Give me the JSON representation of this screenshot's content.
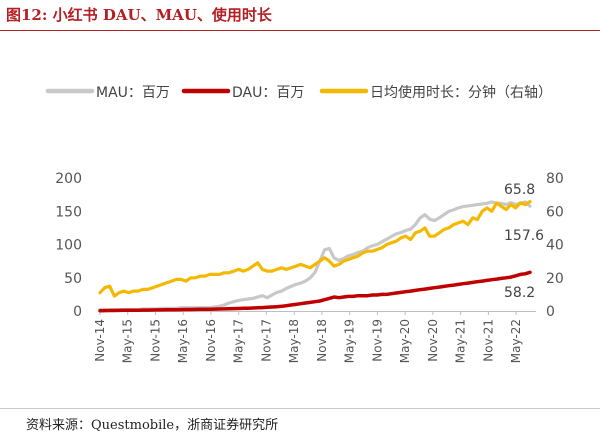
{
  "figure": {
    "title": "图12:   小红书 DAU、MAU、使用时长",
    "source": "资料来源：Questmobile，浙商证券研究所"
  },
  "chart_data": {
    "type": "line",
    "title": "",
    "xlabel": "",
    "ylabel": "",
    "x_ticks": [
      "Nov-14",
      "May-15",
      "Nov-15",
      "May-16",
      "Nov-16",
      "May-17",
      "Nov-17",
      "May-18",
      "Nov-18",
      "May-19",
      "Nov-19",
      "May-20",
      "Nov-20",
      "May-21",
      "Nov-21",
      "May-22"
    ],
    "ylim_left": [
      0,
      200
    ],
    "yticks_left": [
      0,
      50,
      100,
      150,
      200
    ],
    "ylim_right": [
      0,
      80
    ],
    "yticks_right": [
      0,
      20,
      40,
      60,
      80
    ],
    "legend_position": "top",
    "grid": false,
    "series": [
      {
        "name": "MAU：百万",
        "axis": "left",
        "color": "#c8c8c8",
        "x": [
          0,
          1,
          2,
          3,
          4,
          5,
          6,
          7,
          8,
          9,
          10,
          11,
          12,
          13,
          14,
          15,
          16,
          17,
          18,
          19,
          20,
          21,
          22,
          23,
          24,
          25,
          26,
          27,
          28,
          29,
          30,
          31,
          32,
          33,
          34,
          35,
          36,
          37,
          38,
          39,
          40,
          41,
          42,
          43,
          44,
          45,
          46,
          47,
          48,
          49,
          50,
          51,
          52,
          53,
          54,
          55,
          56,
          57,
          58,
          59,
          60,
          61,
          62,
          63,
          64,
          65,
          66,
          67,
          68,
          69,
          70,
          71,
          72,
          73,
          74,
          75,
          76,
          77,
          78,
          79,
          80,
          81,
          82,
          83,
          84,
          85,
          86,
          87,
          88,
          89,
          90
        ],
        "values": [
          2,
          2,
          2,
          2,
          2,
          2,
          2,
          2,
          2,
          3,
          3,
          3,
          3,
          4,
          4,
          4,
          4,
          5,
          5,
          5,
          5,
          5,
          5,
          5,
          6,
          7,
          9,
          12,
          14,
          16,
          17,
          18,
          19,
          21,
          23,
          20,
          24,
          28,
          30,
          34,
          37,
          40,
          42,
          45,
          50,
          58,
          75,
          92,
          94,
          80,
          76,
          79,
          83,
          85,
          88,
          90,
          95,
          98,
          100,
          104,
          108,
          112,
          116,
          118,
          121,
          123,
          130,
          140,
          145,
          138,
          136,
          140,
          145,
          150,
          152,
          155,
          157,
          158,
          159,
          160,
          161,
          162,
          164,
          162,
          162,
          160,
          163,
          160,
          162,
          164,
          157.6
        ]
      },
      {
        "name": "DAU：百万",
        "axis": "left",
        "color": "#c00000",
        "x": [
          0,
          1,
          2,
          3,
          4,
          5,
          6,
          7,
          8,
          9,
          10,
          11,
          12,
          13,
          14,
          15,
          16,
          17,
          18,
          19,
          20,
          21,
          22,
          23,
          24,
          25,
          26,
          27,
          28,
          29,
          30,
          31,
          32,
          33,
          34,
          35,
          36,
          37,
          38,
          39,
          40,
          41,
          42,
          43,
          44,
          45,
          46,
          47,
          48,
          49,
          50,
          51,
          52,
          53,
          54,
          55,
          56,
          57,
          58,
          59,
          60,
          61,
          62,
          63,
          64,
          65,
          66,
          67,
          68,
          69,
          70,
          71,
          72,
          73,
          74,
          75,
          76,
          77,
          78,
          79,
          80,
          81,
          82,
          83,
          84,
          85,
          86,
          87,
          88,
          89,
          90
        ],
        "values": [
          0.5,
          0.6,
          0.7,
          0.8,
          0.9,
          1,
          1,
          1.1,
          1.2,
          1.3,
          1.4,
          1.5,
          1.6,
          1.7,
          1.8,
          1.9,
          2,
          2.1,
          2.2,
          2.3,
          2.4,
          2.5,
          2.6,
          2.7,
          2.8,
          3,
          3.2,
          3.4,
          3.6,
          3.8,
          4,
          4.2,
          4.5,
          4.8,
          5.1,
          5.5,
          6,
          6.5,
          7,
          8,
          9,
          10,
          11,
          12,
          13,
          14,
          15,
          17,
          19,
          21,
          20,
          21,
          22,
          22,
          23,
          23,
          23,
          24,
          24,
          25,
          25,
          26,
          27,
          28,
          29,
          30,
          31,
          32,
          33,
          34,
          35,
          36,
          37,
          38,
          39,
          40,
          41,
          42,
          43,
          44,
          45,
          46,
          47,
          48,
          49,
          50,
          51,
          53,
          55,
          56,
          58.2
        ]
      },
      {
        "name": "日均使用时长：分钟（右轴）",
        "axis": "right",
        "color": "#f5b800",
        "x": [
          0,
          1,
          2,
          3,
          4,
          5,
          6,
          7,
          8,
          9,
          10,
          11,
          12,
          13,
          14,
          15,
          16,
          17,
          18,
          19,
          20,
          21,
          22,
          23,
          24,
          25,
          26,
          27,
          28,
          29,
          30,
          31,
          32,
          33,
          34,
          35,
          36,
          37,
          38,
          39,
          40,
          41,
          42,
          43,
          44,
          45,
          46,
          47,
          48,
          49,
          50,
          51,
          52,
          53,
          54,
          55,
          56,
          57,
          58,
          59,
          60,
          61,
          62,
          63,
          64,
          65,
          66,
          67,
          68,
          69,
          70,
          71,
          72,
          73,
          74,
          75,
          76,
          77,
          78,
          79,
          80,
          81,
          82,
          83,
          84,
          85,
          86,
          87,
          88,
          89,
          90
        ],
        "values": [
          11,
          14,
          15,
          9,
          11,
          12,
          11,
          12,
          12,
          13,
          13,
          14,
          15,
          16,
          17,
          18,
          19,
          19,
          18,
          20,
          20,
          21,
          21,
          22,
          22,
          22,
          23,
          23,
          24,
          25,
          24,
          25,
          27,
          29,
          25,
          24,
          24,
          25,
          26,
          25,
          26,
          27,
          28,
          27,
          26,
          28,
          30,
          32,
          30,
          27,
          28,
          30,
          31,
          32,
          33,
          35,
          36,
          36,
          37,
          38,
          40,
          41,
          42,
          44,
          45,
          43,
          47,
          48,
          50,
          45,
          45,
          47,
          49,
          50,
          52,
          53,
          54,
          52,
          56,
          55,
          60,
          62,
          60,
          65,
          63,
          61,
          64,
          62,
          65,
          64,
          65.8
        ]
      }
    ],
    "annotations": [
      {
        "text": "65.8",
        "series": "日均使用时长：分钟（右轴）"
      },
      {
        "text": "157.6",
        "series": "MAU：百万"
      },
      {
        "text": "58.2",
        "series": "DAU：百万"
      }
    ]
  }
}
